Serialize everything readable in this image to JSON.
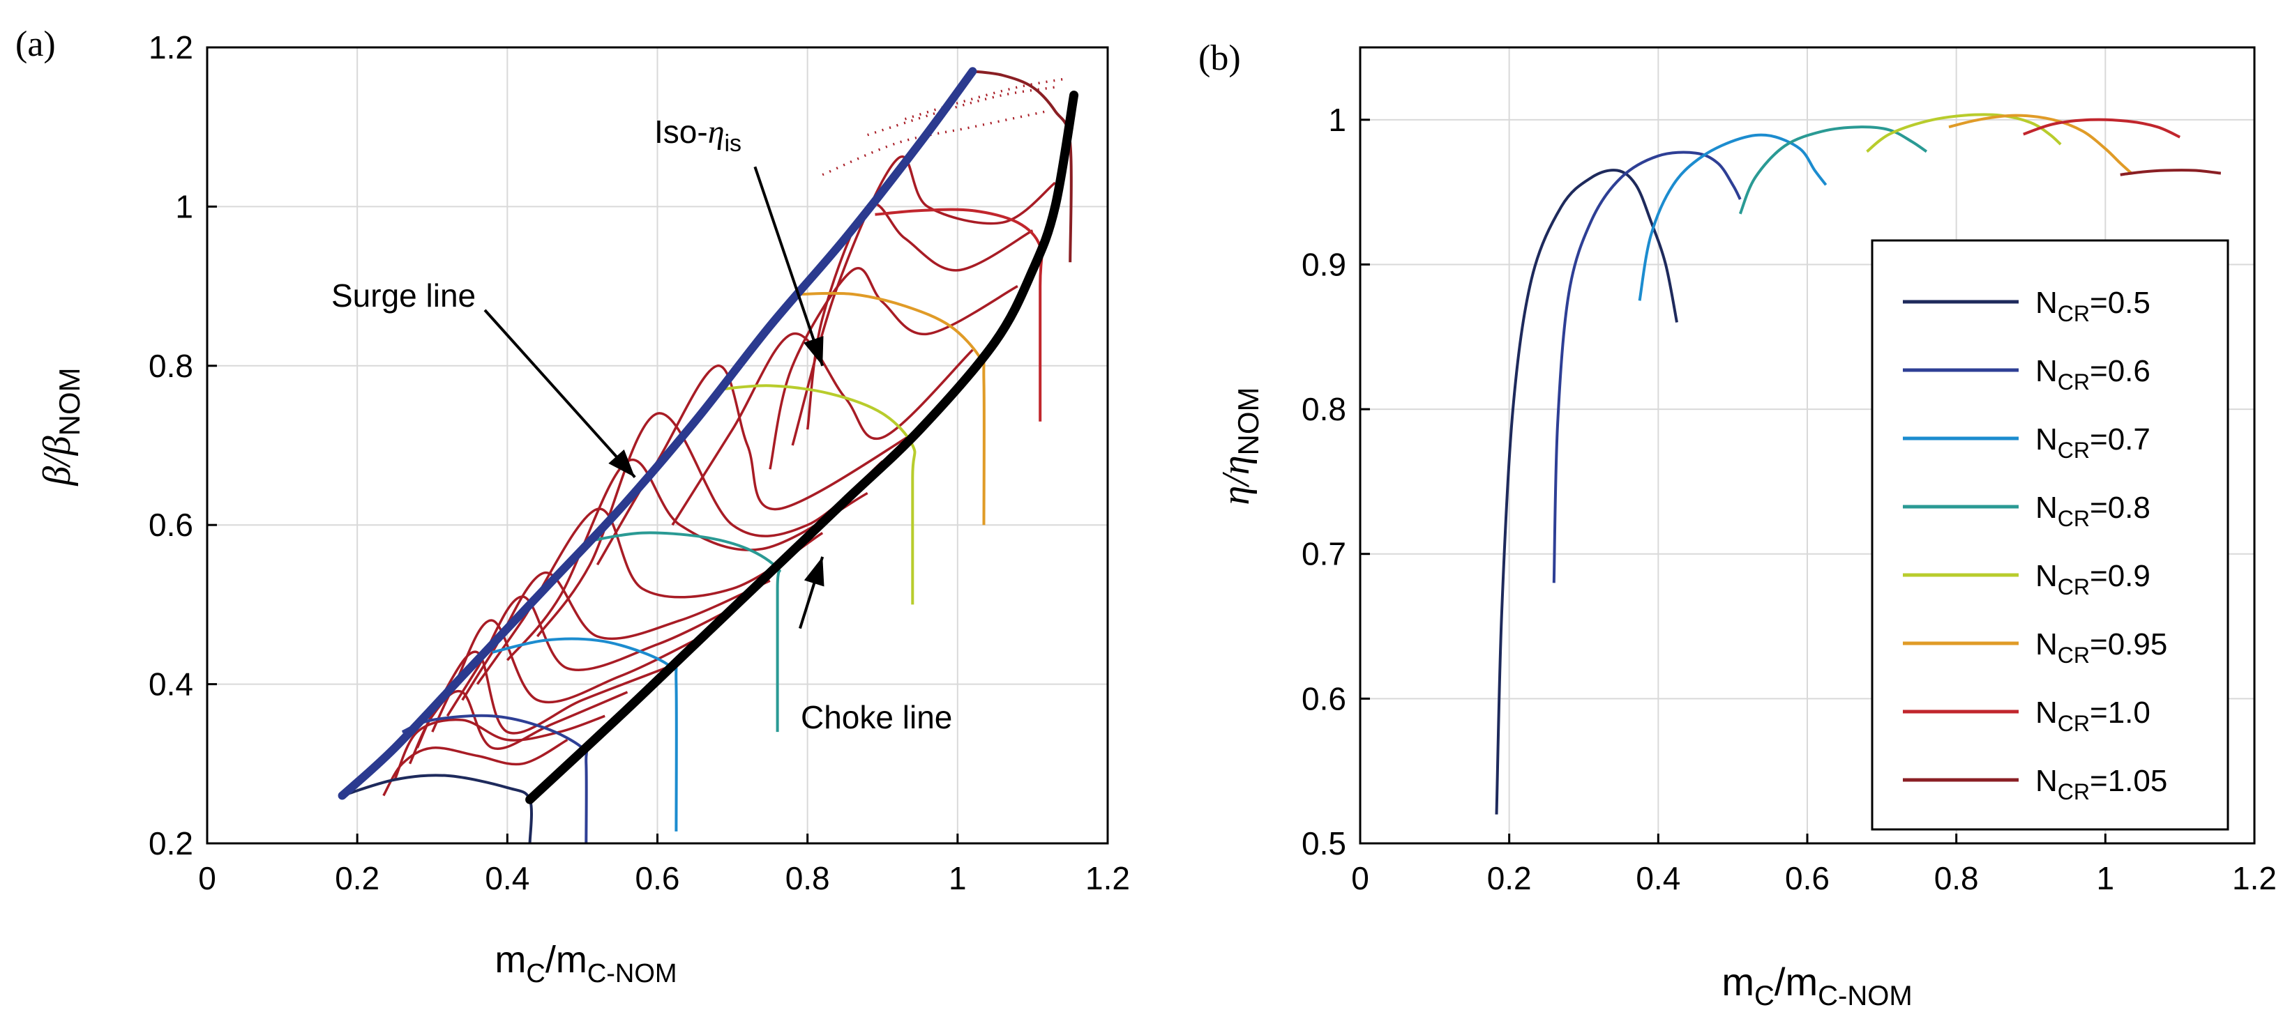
{
  "figure": {
    "panel_a_label": "(a)",
    "panel_b_label": "(b)"
  },
  "chart_data": [
    {
      "type": "line",
      "panel": "a",
      "title": "",
      "xlabel": "m_C/m_C-NOM",
      "xlabel_main": "m",
      "xlabel_sub1": "C",
      "xlabel_sep": "/m",
      "xlabel_sub2": "C-NOM",
      "ylabel": "β/β_NOM",
      "ylabel_main": "β/β",
      "ylabel_sub": "NOM",
      "xlim": [
        0,
        1.2
      ],
      "ylim": [
        0.2,
        1.2
      ],
      "xticks": [
        0,
        0.2,
        0.4,
        0.6,
        0.8,
        1,
        1.2
      ],
      "yticks": [
        0.2,
        0.4,
        0.6,
        0.8,
        1,
        1.2
      ],
      "xtick_labels": [
        "0",
        "0.2",
        "0.4",
        "0.6",
        "0.8",
        "1",
        "1.2"
      ],
      "ytick_labels": [
        "0.2",
        "0.4",
        "0.6",
        "0.8",
        "1",
        "1.2"
      ],
      "grid": true,
      "annotations": {
        "surge": "Surge line",
        "choke": "Choke line",
        "iso_main": "Iso-",
        "iso_eta": "η",
        "iso_sub": "is"
      },
      "surge_line": {
        "color": "#2b3a8f",
        "x": [
          0.18,
          0.25,
          0.35,
          0.45,
          0.55,
          0.65,
          0.75,
          0.85,
          0.95,
          1.02
        ],
        "y": [
          0.26,
          0.32,
          0.42,
          0.52,
          0.62,
          0.73,
          0.85,
          0.96,
          1.08,
          1.17
        ]
      },
      "choke_line": {
        "color": "#000000",
        "x": [
          0.43,
          0.55,
          0.65,
          0.75,
          0.85,
          0.95,
          1.05,
          1.1,
          1.13,
          1.155
        ],
        "y": [
          0.255,
          0.36,
          0.45,
          0.54,
          0.63,
          0.72,
          0.83,
          0.92,
          1.0,
          1.14
        ]
      },
      "series": [
        {
          "name": "N_CR=0.5",
          "color": "#1e2a5c",
          "x": [
            0.18,
            0.25,
            0.32,
            0.4,
            0.43,
            0.43
          ],
          "y": [
            0.26,
            0.28,
            0.285,
            0.27,
            0.255,
            0.2
          ]
        },
        {
          "name": "N_CR=0.6",
          "color": "#2e3f95",
          "x": [
            0.26,
            0.3,
            0.38,
            0.45,
            0.5,
            0.505,
            0.505
          ],
          "y": [
            0.34,
            0.355,
            0.36,
            0.345,
            0.32,
            0.3,
            0.2
          ]
        },
        {
          "name": "N_CR=0.7",
          "color": "#1c8ccf",
          "x": [
            0.38,
            0.45,
            0.52,
            0.58,
            0.62,
            0.625,
            0.625
          ],
          "y": [
            0.44,
            0.455,
            0.455,
            0.44,
            0.42,
            0.4,
            0.215
          ]
        },
        {
          "name": "N_CR=0.8",
          "color": "#2a9a94",
          "x": [
            0.51,
            0.58,
            0.66,
            0.72,
            0.76,
            0.76,
            0.76
          ],
          "y": [
            0.58,
            0.59,
            0.585,
            0.57,
            0.545,
            0.52,
            0.34
          ]
        },
        {
          "name": "N_CR=0.9",
          "color": "#b8cc2c",
          "x": [
            0.68,
            0.75,
            0.83,
            0.9,
            0.94,
            0.94,
            0.94
          ],
          "y": [
            0.77,
            0.775,
            0.765,
            0.74,
            0.7,
            0.66,
            0.5
          ]
        },
        {
          "name": "N_CR=0.95",
          "color": "#e09b27",
          "x": [
            0.79,
            0.86,
            0.93,
            0.99,
            1.03,
            1.035,
            1.035
          ],
          "y": [
            0.89,
            0.89,
            0.875,
            0.85,
            0.81,
            0.78,
            0.6
          ]
        },
        {
          "name": "N_CR=1.0",
          "color": "#c1262d",
          "x": [
            0.89,
            0.95,
            1.02,
            1.08,
            1.11,
            1.11,
            1.11
          ],
          "y": [
            0.99,
            0.995,
            0.995,
            0.98,
            0.95,
            0.9,
            0.73
          ]
        },
        {
          "name": "N_CR=1.05",
          "color": "#8a1f24",
          "x": [
            1.02,
            1.06,
            1.1,
            1.13,
            1.15,
            1.15
          ],
          "y": [
            1.17,
            1.165,
            1.15,
            1.12,
            1.08,
            0.93
          ]
        }
      ],
      "iso_eta_color": "#a81c25",
      "iso_eta_curves": [
        {
          "x": [
            0.235,
            0.26,
            0.3,
            0.36,
            0.42,
            0.48
          ],
          "y": [
            0.26,
            0.3,
            0.32,
            0.31,
            0.3,
            0.33
          ]
        },
        {
          "x": [
            0.25,
            0.28,
            0.34,
            0.4,
            0.47,
            0.53
          ],
          "y": [
            0.28,
            0.34,
            0.355,
            0.33,
            0.34,
            0.36
          ]
        },
        {
          "x": [
            0.27,
            0.3,
            0.34,
            0.38,
            0.46,
            0.56
          ],
          "y": [
            0.3,
            0.36,
            0.39,
            0.32,
            0.35,
            0.39
          ]
        },
        {
          "x": [
            0.28,
            0.31,
            0.36,
            0.4,
            0.5,
            0.61
          ],
          "y": [
            0.32,
            0.38,
            0.44,
            0.34,
            0.38,
            0.42
          ]
        },
        {
          "x": [
            0.3,
            0.33,
            0.38,
            0.44,
            0.55,
            0.66
          ],
          "y": [
            0.34,
            0.4,
            0.48,
            0.38,
            0.41,
            0.46
          ]
        },
        {
          "x": [
            0.32,
            0.36,
            0.42,
            0.48,
            0.6,
            0.71
          ],
          "y": [
            0.36,
            0.42,
            0.51,
            0.42,
            0.45,
            0.5
          ]
        },
        {
          "x": [
            0.34,
            0.38,
            0.45,
            0.52,
            0.63,
            0.75
          ],
          "y": [
            0.38,
            0.44,
            0.54,
            0.46,
            0.48,
            0.53
          ]
        },
        {
          "x": [
            0.36,
            0.42,
            0.52,
            0.58,
            0.7,
            0.82
          ],
          "y": [
            0.4,
            0.48,
            0.62,
            0.52,
            0.52,
            0.59
          ]
        },
        {
          "x": [
            0.4,
            0.47,
            0.56,
            0.63,
            0.74,
            0.88
          ],
          "y": [
            0.43,
            0.51,
            0.68,
            0.6,
            0.57,
            0.64
          ]
        },
        {
          "x": [
            0.44,
            0.51,
            0.6,
            0.7,
            0.8,
            0.9
          ],
          "y": [
            0.46,
            0.55,
            0.74,
            0.6,
            0.6,
            0.68
          ]
        },
        {
          "x": [
            0.52,
            0.6,
            0.68,
            0.72,
            0.76,
            0.95
          ],
          "y": [
            0.55,
            0.68,
            0.8,
            0.7,
            0.62,
            0.72
          ]
        },
        {
          "x": [
            0.62,
            0.7,
            0.78,
            0.85,
            0.9,
            1.02
          ],
          "y": [
            0.6,
            0.72,
            0.84,
            0.76,
            0.71,
            0.82
          ]
        },
        {
          "x": [
            0.75,
            0.78,
            0.86,
            0.9,
            0.96,
            1.08
          ],
          "y": [
            0.67,
            0.8,
            0.92,
            0.88,
            0.84,
            0.9
          ]
        },
        {
          "x": [
            0.8,
            0.82,
            0.88,
            0.93,
            1.0,
            1.1
          ],
          "y": [
            0.72,
            0.86,
            1.0,
            0.96,
            0.92,
            0.97
          ]
        },
        {
          "x": [
            0.78,
            0.84,
            0.92,
            0.96,
            1.06,
            1.13
          ],
          "y": [
            0.7,
            0.9,
            1.06,
            1.0,
            0.98,
            1.03
          ]
        }
      ],
      "iso_eta_dotted": [
        {
          "x": [
            0.82,
            0.92,
            1.02,
            1.12
          ],
          "y": [
            1.04,
            1.08,
            1.1,
            1.12
          ]
        },
        {
          "x": [
            0.88,
            0.98,
            1.06,
            1.13
          ],
          "y": [
            1.09,
            1.12,
            1.14,
            1.15
          ]
        },
        {
          "x": [
            0.93,
            1.0,
            1.08,
            1.14
          ],
          "y": [
            1.11,
            1.13,
            1.15,
            1.16
          ]
        }
      ],
      "arrows": [
        {
          "from": [
            0.37,
            0.87
          ],
          "to": [
            0.57,
            0.66
          ],
          "for": "surge"
        },
        {
          "from": [
            0.79,
            0.47
          ],
          "to": [
            0.82,
            0.56
          ],
          "for": "choke"
        },
        {
          "from": [
            0.73,
            1.05
          ],
          "to": [
            0.82,
            0.8
          ],
          "for": "iso"
        }
      ]
    },
    {
      "type": "line",
      "panel": "b",
      "title": "",
      "xlabel": "m_C/m_C-NOM",
      "xlabel_main": "m",
      "xlabel_sub1": "C",
      "xlabel_sep": "/m",
      "xlabel_sub2": "C-NOM",
      "ylabel": "η/η_NOM",
      "ylabel_main": "η/η",
      "ylabel_sub": "NOM",
      "xlim": [
        0,
        1.2
      ],
      "ylim": [
        0.5,
        1.05
      ],
      "xticks": [
        0,
        0.2,
        0.4,
        0.6,
        0.8,
        1,
        1.2
      ],
      "yticks": [
        0.5,
        0.6,
        0.7,
        0.8,
        0.9,
        1
      ],
      "xtick_labels": [
        "0",
        "0.2",
        "0.4",
        "0.6",
        "0.8",
        "1",
        "1.2"
      ],
      "ytick_labels": [
        "0.5",
        "0.6",
        "0.7",
        "0.8",
        "0.9",
        "1"
      ],
      "grid": true,
      "legend_placement": "lower-right",
      "series": [
        {
          "name": "N_CR=0.5",
          "label_main": "N",
          "label_sub": "CR",
          "label_val": "=0.5",
          "color": "#1e2a5c",
          "x": [
            0.183,
            0.19,
            0.205,
            0.23,
            0.27,
            0.31,
            0.345,
            0.37,
            0.39,
            0.41,
            0.425
          ],
          "y": [
            0.52,
            0.66,
            0.8,
            0.89,
            0.94,
            0.96,
            0.965,
            0.955,
            0.93,
            0.9,
            0.86
          ]
        },
        {
          "name": "N_CR=0.6",
          "label_main": "N",
          "label_sub": "CR",
          "label_val": "=0.6",
          "color": "#2e3f95",
          "x": [
            0.26,
            0.265,
            0.28,
            0.31,
            0.35,
            0.4,
            0.45,
            0.48,
            0.5,
            0.51
          ],
          "y": [
            0.68,
            0.79,
            0.88,
            0.93,
            0.96,
            0.975,
            0.977,
            0.97,
            0.955,
            0.945
          ]
        },
        {
          "name": "N_CR=0.7",
          "label_main": "N",
          "label_sub": "CR",
          "label_val": "=0.7",
          "color": "#1c8ccf",
          "x": [
            0.375,
            0.39,
            0.42,
            0.46,
            0.51,
            0.55,
            0.59,
            0.61,
            0.625
          ],
          "y": [
            0.875,
            0.92,
            0.955,
            0.975,
            0.987,
            0.989,
            0.98,
            0.965,
            0.955
          ]
        },
        {
          "name": "N_CR=0.8",
          "label_main": "N",
          "label_sub": "CR",
          "label_val": "=0.8",
          "color": "#2a9a94",
          "x": [
            0.51,
            0.53,
            0.57,
            0.62,
            0.67,
            0.71,
            0.74,
            0.76
          ],
          "y": [
            0.935,
            0.96,
            0.982,
            0.992,
            0.995,
            0.993,
            0.985,
            0.978
          ]
        },
        {
          "name": "N_CR=0.9",
          "label_main": "N",
          "label_sub": "CR",
          "label_val": "=0.9",
          "color": "#b8cc2c",
          "x": [
            0.68,
            0.71,
            0.76,
            0.81,
            0.86,
            0.9,
            0.925,
            0.94
          ],
          "y": [
            0.978,
            0.99,
            0.999,
            1.003,
            1.003,
            0.998,
            0.99,
            0.983
          ]
        },
        {
          "name": "N_CR=0.95",
          "label_main": "N",
          "label_sub": "CR",
          "label_val": "=0.95",
          "color": "#e09b27",
          "x": [
            0.79,
            0.83,
            0.88,
            0.93,
            0.97,
            1.0,
            1.02,
            1.035
          ],
          "y": [
            0.995,
            1.0,
            1.003,
            1.0,
            0.992,
            0.98,
            0.97,
            0.963
          ]
        },
        {
          "name": "N_CR=1.0",
          "label_main": "N",
          "label_sub": "CR",
          "label_val": "=1.0",
          "color": "#c1262d",
          "x": [
            0.89,
            0.93,
            0.98,
            1.03,
            1.07,
            1.1
          ],
          "y": [
            0.99,
            0.997,
            1.0,
            0.999,
            0.995,
            0.988
          ]
        },
        {
          "name": "N_CR=1.05",
          "label_main": "N",
          "label_sub": "CR",
          "label_val": "=1.05",
          "color": "#8a1f24",
          "x": [
            1.02,
            1.05,
            1.08,
            1.12,
            1.155
          ],
          "y": [
            0.962,
            0.964,
            0.965,
            0.965,
            0.963
          ]
        }
      ]
    }
  ]
}
